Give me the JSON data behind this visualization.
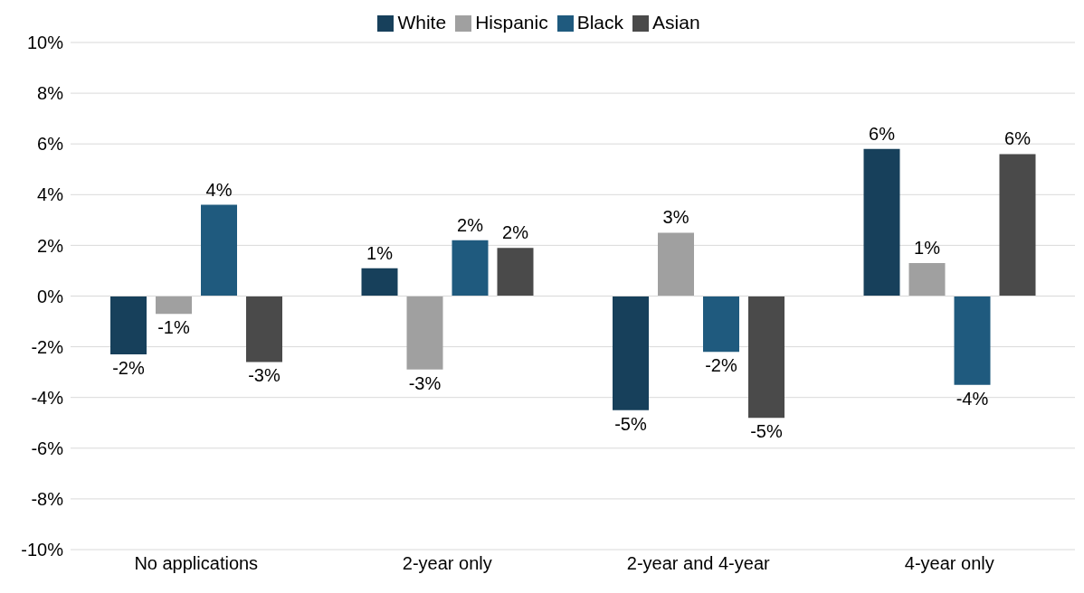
{
  "chart_data": {
    "type": "bar",
    "categories": [
      "No applications",
      "2-year only",
      "2-year and 4-year",
      "4-year only"
    ],
    "series": [
      {
        "name": "White",
        "color": "#17405b",
        "values": [
          -2.3,
          1.1,
          -4.5,
          5.8
        ],
        "value_labels": [
          "-2%",
          "1%",
          "-5%",
          "6%"
        ]
      },
      {
        "name": "Hispanic",
        "color": "#a0a0a0",
        "values": [
          -0.7,
          -2.9,
          2.5,
          1.3
        ],
        "value_labels": [
          "-1%",
          "-3%",
          "3%",
          "1%"
        ]
      },
      {
        "name": "Black",
        "color": "#1f5a7e",
        "values": [
          3.6,
          2.2,
          -2.2,
          -3.5
        ],
        "value_labels": [
          "4%",
          "2%",
          "-2%",
          "-4%"
        ]
      },
      {
        "name": "Asian",
        "color": "#4a4a4a",
        "values": [
          -2.6,
          1.9,
          -4.8,
          5.6
        ],
        "value_labels": [
          "-3%",
          "2%",
          "-5%",
          "6%"
        ]
      }
    ],
    "ylim": [
      -10,
      10
    ],
    "yticks": [
      {
        "value": -10,
        "label": "-10%"
      },
      {
        "value": -8,
        "label": "-8%"
      },
      {
        "value": -6,
        "label": "-6%"
      },
      {
        "value": -4,
        "label": "-4%"
      },
      {
        "value": -2,
        "label": "-2%"
      },
      {
        "value": 0,
        "label": "0%"
      },
      {
        "value": 2,
        "label": "2%"
      },
      {
        "value": 4,
        "label": "4%"
      },
      {
        "value": 6,
        "label": "6%"
      },
      {
        "value": 8,
        "label": "8%"
      },
      {
        "value": 10,
        "label": "10%"
      }
    ],
    "grid": "y",
    "legend": "top"
  }
}
